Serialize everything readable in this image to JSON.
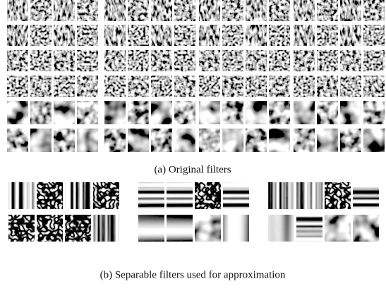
{
  "figure": {
    "subfigures": [
      {
        "caption": "(a) Original filters"
      },
      {
        "caption": "(b) Separable filters used for approximation"
      }
    ]
  }
}
